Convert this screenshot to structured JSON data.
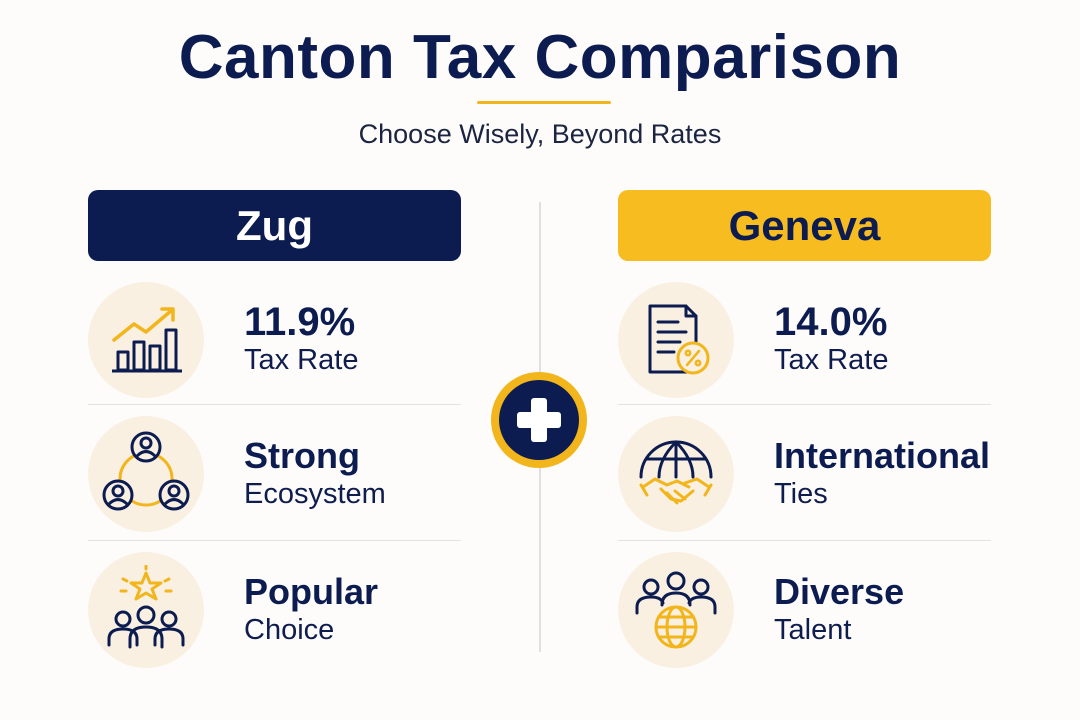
{
  "header": {
    "title": "Canton Tax Comparison",
    "subtitle": "Choose Wisely, Beyond Rates"
  },
  "colors": {
    "navy": "#0c1c50",
    "gold": "#f7bd20",
    "icon_bg": "#f9f0e1"
  },
  "zug": {
    "name": "Zug",
    "items": [
      {
        "icon": "growth-chart-icon",
        "line1": "11.9%",
        "line2": "Tax Rate"
      },
      {
        "icon": "network-people-icon",
        "line1": "Strong",
        "line2": "Ecosystem"
      },
      {
        "icon": "star-group-icon",
        "line1": "Popular",
        "line2": "Choice"
      }
    ]
  },
  "geneva": {
    "name": "Geneva",
    "items": [
      {
        "icon": "tax-document-icon",
        "line1": "14.0%",
        "line2": "Tax Rate"
      },
      {
        "icon": "globe-handshake-icon",
        "line1": "International",
        "line2": "Ties"
      },
      {
        "icon": "people-globe-icon",
        "line1": "Diverse",
        "line2": "Talent"
      }
    ]
  },
  "center_badge": {
    "icon": "swiss-cross-icon"
  }
}
